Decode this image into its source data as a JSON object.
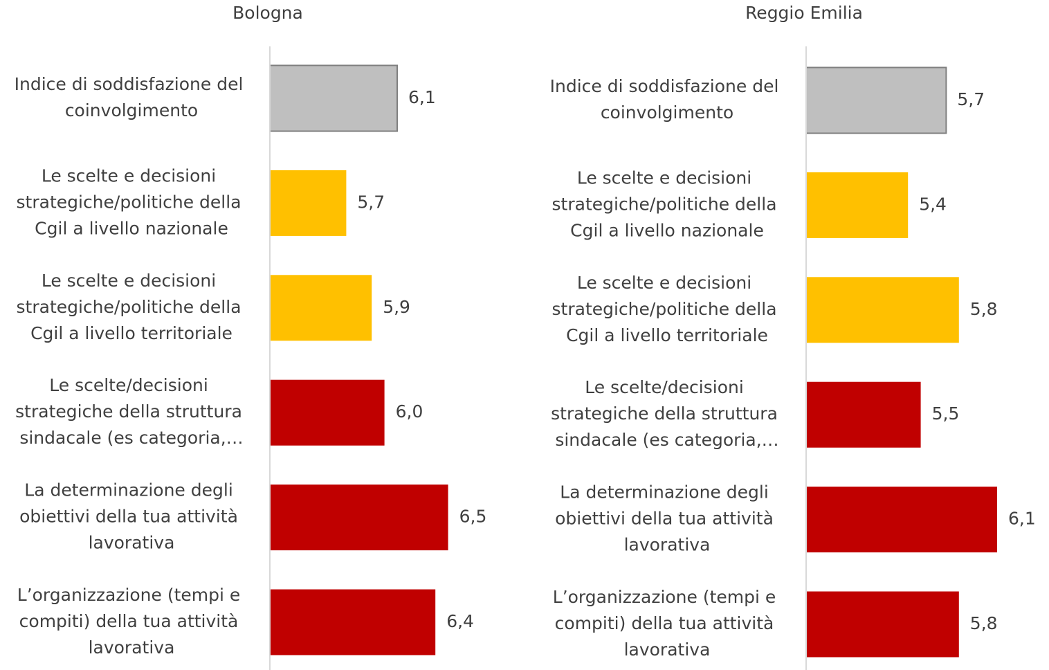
{
  "chart_data": [
    {
      "type": "barh",
      "title": "Bologna",
      "categories": [
        "Indice di soddisfazione del coinvolgimento",
        "Le scelte e decisioni strategiche/politiche della Cgil a livello nazionale",
        "Le scelte e decisioni strategiche/politiche della Cgil a livello territoriale",
        "Le scelte/decisioni strategiche della struttura sindacale (es categoria,…",
        "La determinazione degli obiettivi della tua attività lavorativa",
        "L’organizzazione (tempi e compiti) della tua attività lavorativa"
      ],
      "values": [
        6.1,
        5.7,
        5.9,
        6.0,
        6.5,
        6.4
      ],
      "value_labels": [
        "6,1",
        "5,7",
        "5,9",
        "6,0",
        "6,5",
        "6,4"
      ],
      "colors": [
        "#bfbfbf",
        "#ffc000",
        "#ffc000",
        "#c00000",
        "#c00000",
        "#c00000"
      ],
      "xlim": [
        5.1,
        6.9
      ]
    },
    {
      "type": "barh",
      "title": "Reggio Emilia",
      "categories": [
        "Indice di soddisfazione del coinvolgimento",
        "Le scelte e decisioni strategiche/politiche della Cgil a livello nazionale",
        "Le scelte e decisioni strategiche/politiche della Cgil a livello territoriale",
        "Le scelte/decisioni strategiche della struttura sindacale (es categoria,…",
        "La determinazione degli obiettivi della tua attività lavorativa",
        "L’organizzazione (tempi e compiti) della tua attività lavorativa"
      ],
      "values": [
        5.7,
        5.4,
        5.8,
        5.5,
        6.1,
        5.8
      ],
      "value_labels": [
        "5,7",
        "5,4",
        "5,8",
        "5,5",
        "6,1",
        "5,8"
      ],
      "colors": [
        "#bfbfbf",
        "#ffc000",
        "#ffc000",
        "#c00000",
        "#c00000",
        "#c00000"
      ],
      "xlim": [
        4.6,
        6.4
      ]
    }
  ]
}
